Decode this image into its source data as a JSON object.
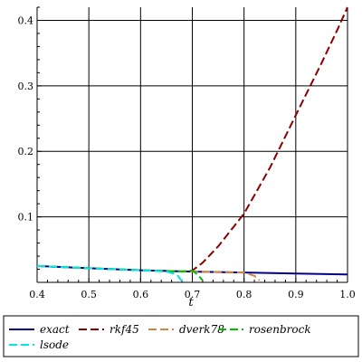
{
  "chart_data": {
    "type": "line",
    "title": "",
    "xlabel": "t",
    "ylabel": "",
    "xlim": [
      0.4,
      1.0
    ],
    "ylim": [
      0.0,
      0.42
    ],
    "xticks": [
      "0.4",
      "0.5",
      "0.6",
      "0.7",
      "0.8",
      "0.9",
      "1.0"
    ],
    "xtick_values": [
      0.4,
      0.5,
      0.6,
      0.7,
      0.8,
      0.9,
      1.0
    ],
    "yticks": [
      "0.1",
      "0.2",
      "0.3",
      "0.4"
    ],
    "ytick_values": [
      0.1,
      0.2,
      0.3,
      0.4
    ],
    "grid": true,
    "legend_position": "bottom",
    "series": [
      {
        "name": "exact",
        "color": "#00008b",
        "dash": "solid",
        "x": [
          0.4,
          0.5,
          0.6,
          0.7,
          0.8,
          0.9,
          1.0
        ],
        "y": [
          0.025,
          0.0215,
          0.0185,
          0.0165,
          0.015,
          0.0135,
          0.012
        ]
      },
      {
        "name": "rkf45",
        "color": "#8b0000",
        "dash": "long",
        "x": [
          0.4,
          0.5,
          0.6,
          0.68,
          0.7,
          0.72,
          0.75,
          0.8,
          0.85,
          0.9,
          0.95,
          0.98,
          1.0
        ],
        "y": [
          0.025,
          0.0215,
          0.0185,
          0.0165,
          0.018,
          0.03,
          0.055,
          0.105,
          0.175,
          0.255,
          0.335,
          0.385,
          0.42
        ]
      },
      {
        "name": "dverk78",
        "color": "#cd853f",
        "dash": "long",
        "x": [
          0.4,
          0.5,
          0.6,
          0.7,
          0.8,
          0.82,
          0.83
        ],
        "y": [
          0.025,
          0.0215,
          0.0185,
          0.0165,
          0.015,
          0.01,
          0.003
        ]
      },
      {
        "name": "rosenbrock",
        "color": "#00c000",
        "dash": "long",
        "x": [
          0.4,
          0.5,
          0.6,
          0.68,
          0.69,
          0.7,
          0.71,
          0.72
        ],
        "y": [
          0.025,
          0.0215,
          0.0185,
          0.0165,
          0.0175,
          0.018,
          0.012,
          0.003
        ]
      },
      {
        "name": "lsode",
        "color": "#00e5e5",
        "dash": "long",
        "x": [
          0.4,
          0.5,
          0.6,
          0.65,
          0.67,
          0.68
        ],
        "y": [
          0.025,
          0.0215,
          0.0185,
          0.0165,
          0.012,
          0.002
        ]
      }
    ]
  }
}
